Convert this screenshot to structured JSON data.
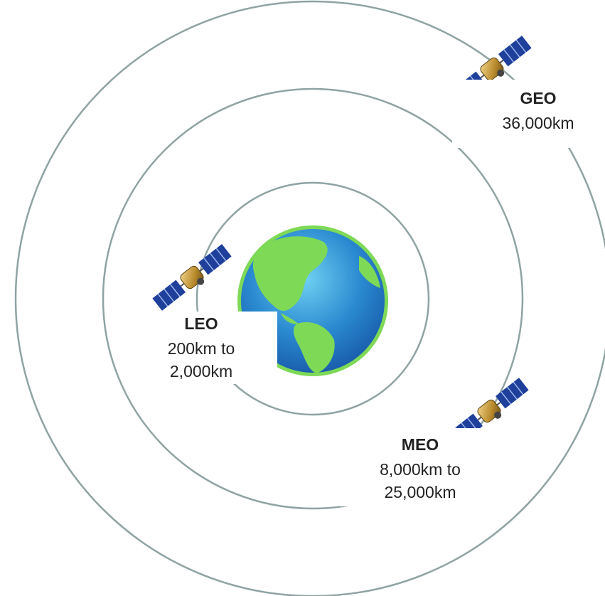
{
  "orbits": [
    {
      "name": "LEO",
      "lines": [
        "200km to",
        "2,000km"
      ]
    },
    {
      "name": "MEO",
      "lines": [
        "8,000km to",
        "25,000km"
      ]
    },
    {
      "name": "GEO",
      "lines": [
        "36,000km"
      ]
    }
  ]
}
